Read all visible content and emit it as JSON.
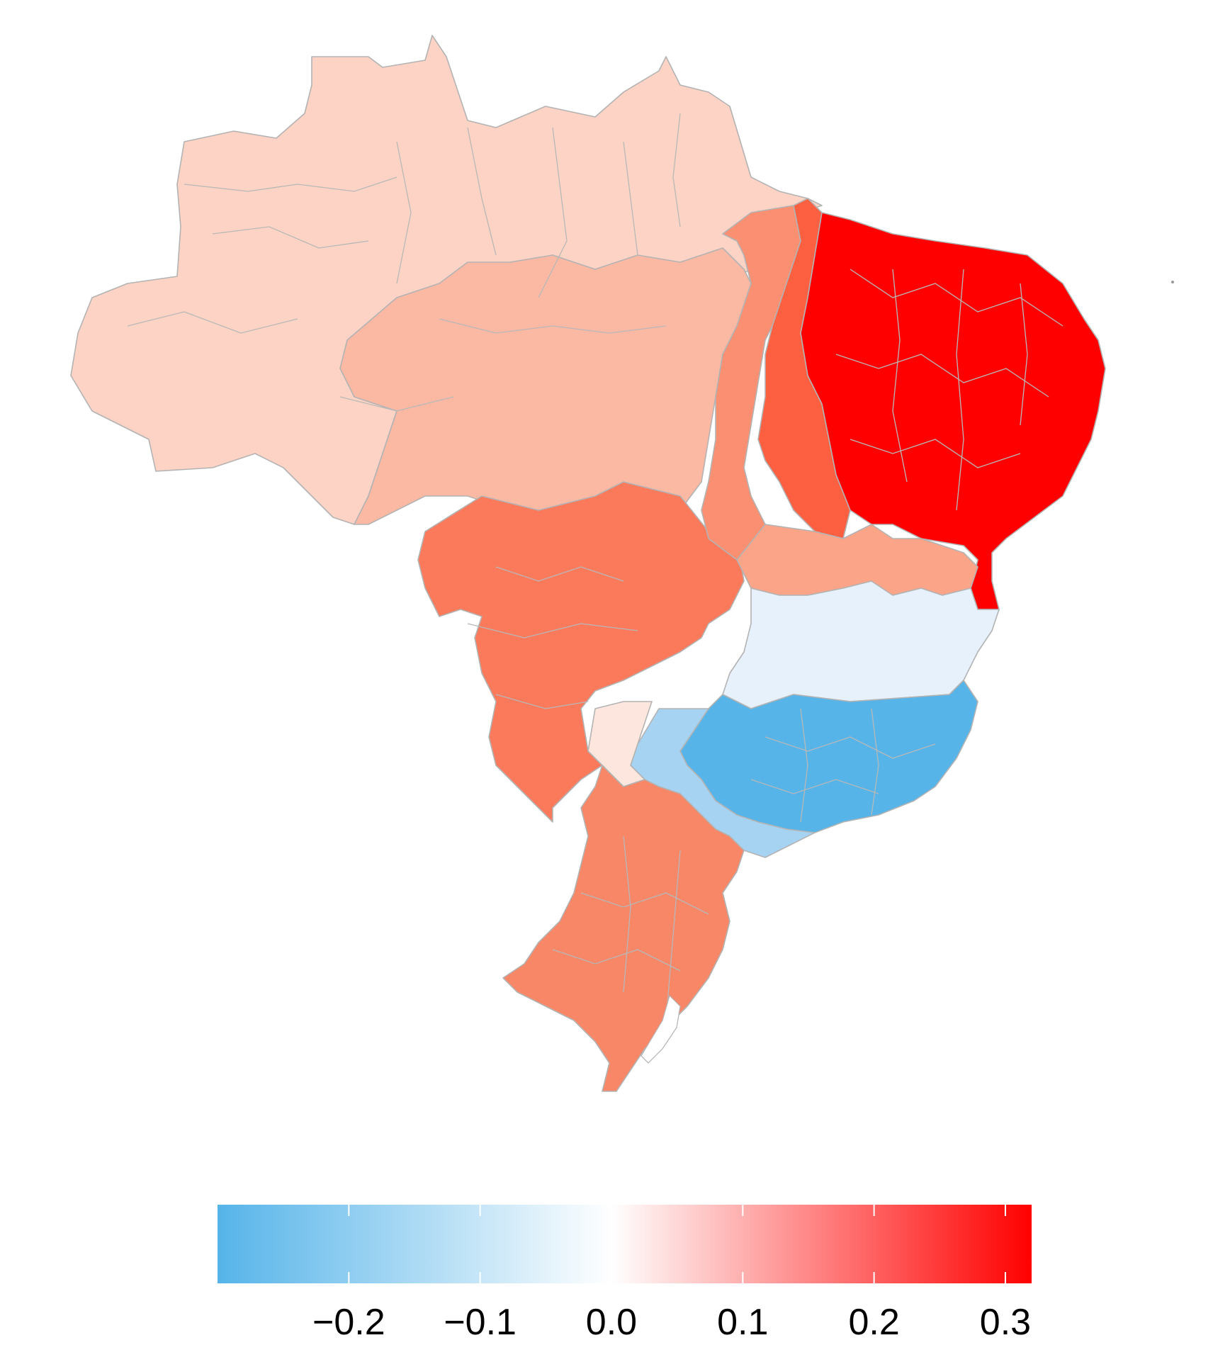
{
  "map": {
    "country": "Brazil",
    "color_scale": {
      "min_color": "#56B4E9",
      "mid_color": "#ffffff",
      "max_color": "#ff0000",
      "domain": [
        -0.3,
        0.32
      ]
    },
    "regions": [
      {
        "id": "north",
        "value": 0.04,
        "color": "#fcd3c4"
      },
      {
        "id": "center-west-north",
        "value": 0.08,
        "color": "#fbb9a4"
      },
      {
        "id": "center-west",
        "value": 0.18,
        "color": "#fb7a5c"
      },
      {
        "id": "tocantins-maranhao-west",
        "value": 0.16,
        "color": "#fb8f72"
      },
      {
        "id": "maranhao-east",
        "value": 0.22,
        "color": "#fc6040"
      },
      {
        "id": "northeast",
        "value": 0.31,
        "color": "#ff0000"
      },
      {
        "id": "bahia-west",
        "value": 0.14,
        "color": "#fca488"
      },
      {
        "id": "bahia-south",
        "value": -0.03,
        "color": "#e6f1fc"
      },
      {
        "id": "minas-rio",
        "value": -0.28,
        "color": "#56b4e9"
      },
      {
        "id": "sao-paulo",
        "value": -0.18,
        "color": "#a7d3f3"
      },
      {
        "id": "mato-grosso-sul",
        "value": 0.02,
        "color": "#fde6dd"
      },
      {
        "id": "south",
        "value": 0.15,
        "color": "#f88768"
      }
    ]
  },
  "legend": {
    "ticks": [
      {
        "label": "−0.2",
        "value": -0.2
      },
      {
        "label": "−0.1",
        "value": -0.1
      },
      {
        "label": "0.0",
        "value": 0.0
      },
      {
        "label": "0.1",
        "value": 0.1
      },
      {
        "label": "0.2",
        "value": 0.2
      },
      {
        "label": "0.3",
        "value": 0.3
      }
    ]
  }
}
